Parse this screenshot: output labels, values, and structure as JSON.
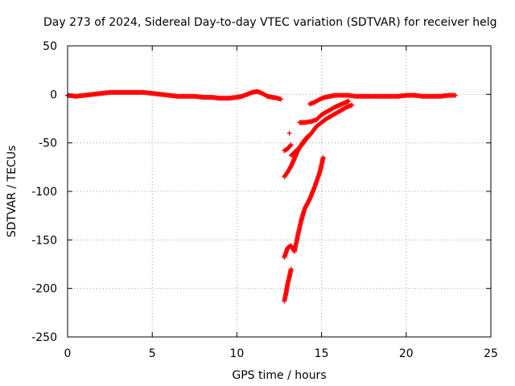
{
  "chart_data": {
    "type": "scatter",
    "title": "Day 273 of 2024, Sidereal Day-to-day VTEC variation (SDTVAR) for receiver helg",
    "xlabel": "GPS time / hours",
    "ylabel": "SDTVAR / TECUs",
    "xlim": [
      0,
      25
    ],
    "ylim": [
      -250,
      50
    ],
    "xticks": [
      0,
      5,
      10,
      15,
      20,
      25
    ],
    "yticks": [
      50,
      0,
      -50,
      -100,
      -150,
      -200,
      -250
    ],
    "grid": true,
    "marker": "plus",
    "color": "#ff0000",
    "series": [
      {
        "name": "baseline",
        "points": [
          [
            0,
            -1
          ],
          [
            0.5,
            -2
          ],
          [
            1,
            -1
          ],
          [
            1.5,
            0
          ],
          [
            2,
            1
          ],
          [
            2.5,
            2
          ],
          [
            3,
            2
          ],
          [
            3.5,
            2
          ],
          [
            4,
            2
          ],
          [
            4.5,
            2
          ],
          [
            5,
            1
          ],
          [
            5.5,
            0
          ],
          [
            6,
            -1
          ],
          [
            6.5,
            -2
          ],
          [
            7,
            -2
          ],
          [
            7.5,
            -2
          ],
          [
            8,
            -3
          ],
          [
            8.5,
            -3
          ],
          [
            9,
            -4
          ],
          [
            9.5,
            -4
          ],
          [
            10,
            -3
          ],
          [
            10.3,
            -2
          ],
          [
            10.6,
            0
          ],
          [
            10.9,
            2
          ],
          [
            11.2,
            3
          ],
          [
            11.5,
            1
          ],
          [
            11.8,
            -2
          ],
          [
            12.1,
            -3
          ],
          [
            12.4,
            -4
          ],
          [
            12.6,
            -5
          ]
        ]
      },
      {
        "name": "upper-branch",
        "points": [
          [
            14.3,
            -10
          ],
          [
            14.6,
            -8
          ],
          [
            14.9,
            -5
          ],
          [
            15.2,
            -3
          ],
          [
            15.5,
            -2
          ],
          [
            15.8,
            -1
          ],
          [
            16.2,
            -1
          ],
          [
            16.6,
            -1
          ],
          [
            17,
            -2
          ],
          [
            17.5,
            -2
          ],
          [
            18,
            -2
          ],
          [
            18.5,
            -2
          ],
          [
            19,
            -2
          ],
          [
            19.5,
            -2
          ],
          [
            20,
            -1
          ],
          [
            20.5,
            -1
          ],
          [
            21,
            -2
          ],
          [
            21.5,
            -2
          ],
          [
            22,
            -2
          ],
          [
            22.5,
            -1
          ],
          [
            22.9,
            -1
          ]
        ]
      },
      {
        "name": "branch-2",
        "points": [
          [
            13.7,
            -29
          ],
          [
            14,
            -29
          ],
          [
            14.4,
            -28
          ],
          [
            14.7,
            -26
          ],
          [
            15,
            -21
          ],
          [
            15.4,
            -17
          ],
          [
            15.8,
            -13
          ],
          [
            16.2,
            -10
          ],
          [
            16.6,
            -7
          ]
        ]
      },
      {
        "name": "branch-3",
        "points": [
          [
            13.2,
            -63
          ],
          [
            13.5,
            -58
          ],
          [
            13.8,
            -53
          ],
          [
            14.1,
            -46
          ],
          [
            14.4,
            -40
          ],
          [
            14.7,
            -33
          ],
          [
            15,
            -29
          ],
          [
            15.3,
            -25
          ],
          [
            15.6,
            -22
          ],
          [
            15.9,
            -19
          ],
          [
            16.2,
            -16
          ],
          [
            16.5,
            -13
          ],
          [
            16.8,
            -11
          ]
        ]
      },
      {
        "name": "branch-4",
        "points": [
          [
            12.8,
            -85
          ],
          [
            13,
            -80
          ],
          [
            13.2,
            -74
          ],
          [
            13.4,
            -66
          ],
          [
            13.6,
            -58
          ],
          [
            13.8,
            -52
          ],
          [
            14,
            -47
          ],
          [
            14.2,
            -43
          ]
        ]
      },
      {
        "name": "branch-5",
        "points": [
          [
            12.8,
            -58
          ],
          [
            13,
            -56
          ],
          [
            13.2,
            -52
          ]
        ]
      },
      {
        "name": "steep-branch",
        "points": [
          [
            12.8,
            -168
          ],
          [
            13,
            -158
          ],
          [
            13.2,
            -156
          ],
          [
            13.4,
            -162
          ],
          [
            13.6,
            -145
          ],
          [
            13.8,
            -130
          ],
          [
            14,
            -118
          ],
          [
            14.3,
            -108
          ],
          [
            14.6,
            -95
          ],
          [
            14.9,
            -80
          ],
          [
            15.1,
            -65
          ]
        ]
      },
      {
        "name": "lowest-branch",
        "points": [
          [
            12.8,
            -213
          ],
          [
            12.9,
            -205
          ],
          [
            13,
            -195
          ],
          [
            13.1,
            -188
          ],
          [
            13.2,
            -180
          ]
        ]
      },
      {
        "name": "isolated",
        "points": [
          [
            13.1,
            -40
          ]
        ]
      }
    ]
  }
}
